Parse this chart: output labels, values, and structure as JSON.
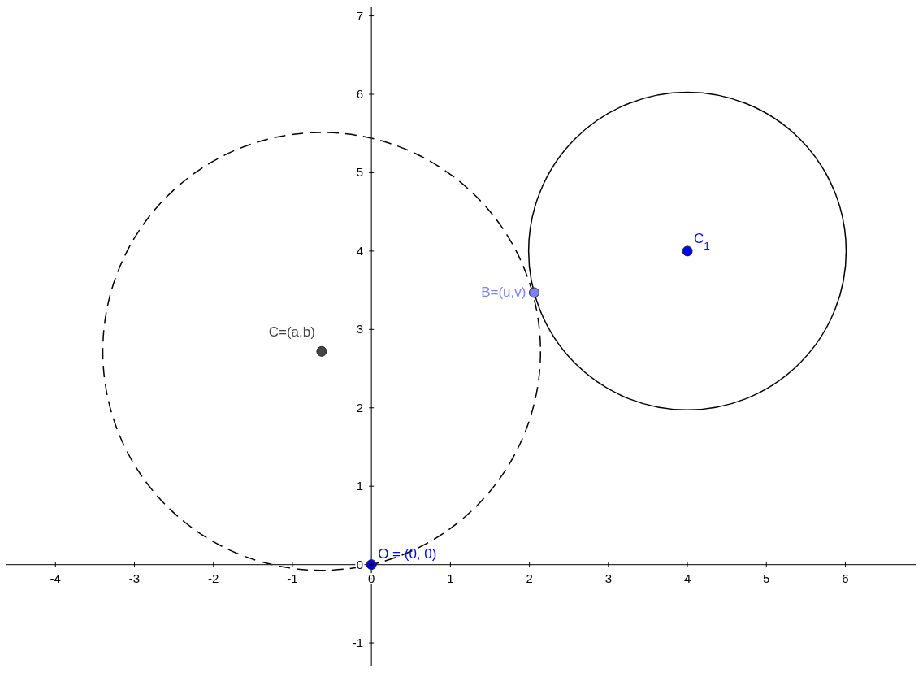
{
  "chart_data": {
    "type": "scatter",
    "marker": "circle",
    "xlim": [
      -4.62,
      6.9
    ],
    "ylim": [
      -1.3,
      7.12
    ],
    "xticks": [
      -4,
      -3,
      -2,
      -1,
      0,
      1,
      2,
      3,
      4,
      5,
      6
    ],
    "yticks": [
      -1,
      0,
      1,
      2,
      3,
      4,
      5,
      6,
      7
    ],
    "series": [
      {
        "name": "O = (0, 0)",
        "color": "#0000ff",
        "x": [
          0
        ],
        "values": [
          0
        ]
      },
      {
        "name": "B=(u,v)",
        "color": "#7f7fff",
        "x": [
          2.06
        ],
        "values": [
          3.47
        ]
      },
      {
        "name": "C=(a,b)",
        "color": "#444444",
        "x": [
          -0.63
        ],
        "values": [
          2.72
        ]
      },
      {
        "name": "C$_{1}$",
        "color": "#0000ff",
        "x": [
          4
        ],
        "values": [
          4
        ]
      }
    ]
  }
}
